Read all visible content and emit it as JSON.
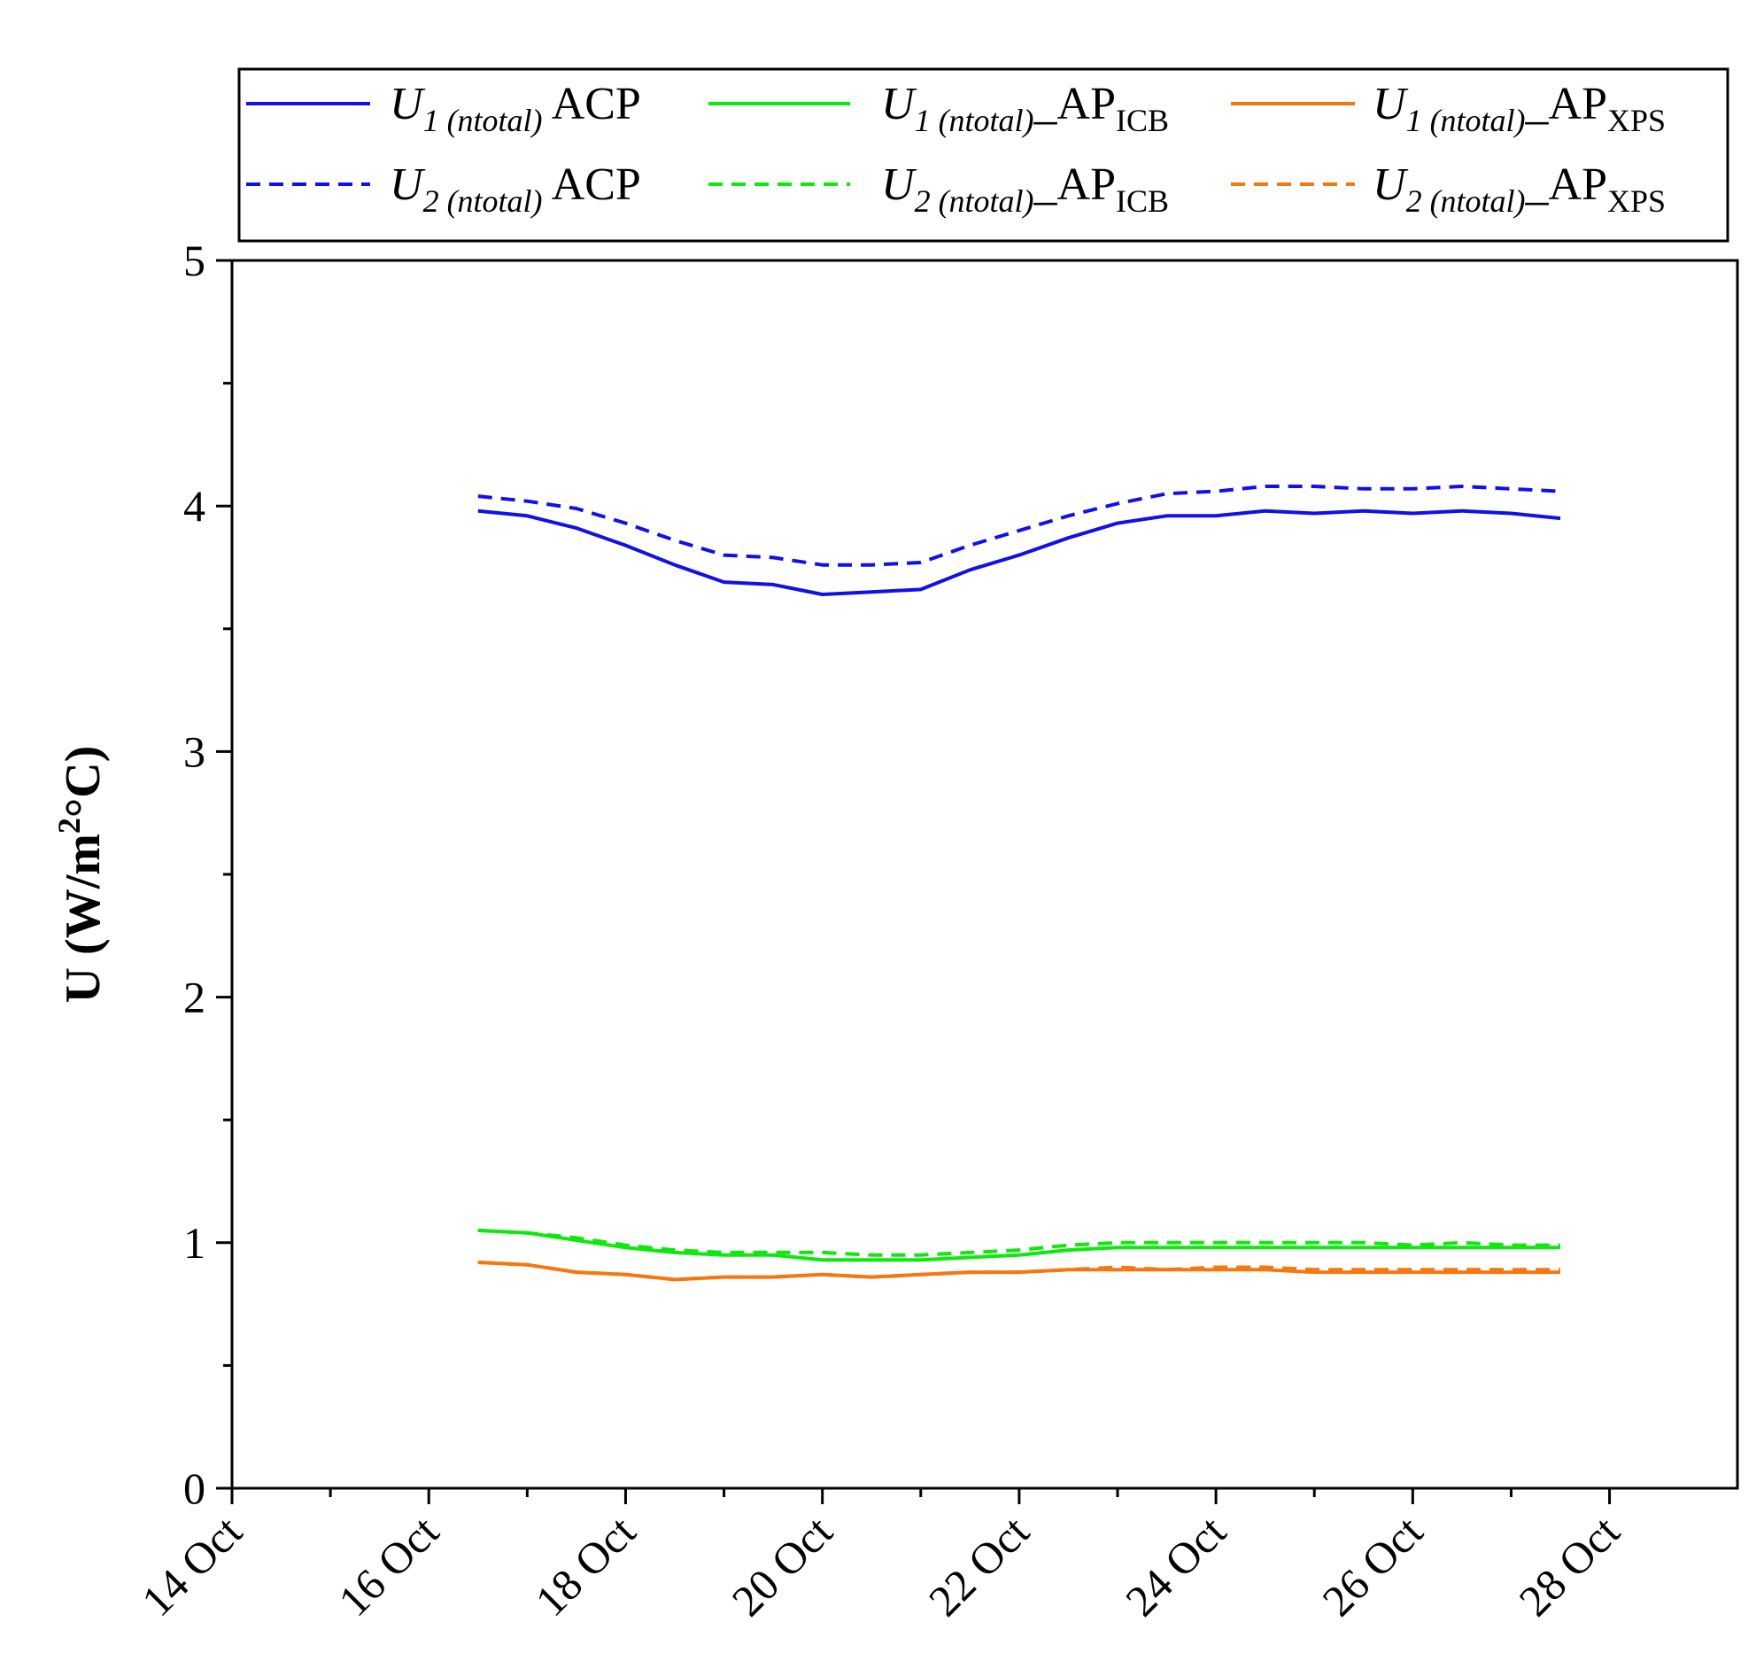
{
  "chart_data": {
    "type": "line",
    "title": "",
    "xlabel": "",
    "ylabel_main": "U (W/m",
    "ylabel_sup": "2",
    "ylabel_tail": "°C)",
    "ylim": [
      0,
      5
    ],
    "xlim": [
      14,
      29.3
    ],
    "y_ticks": [
      0,
      1,
      2,
      3,
      4,
      5
    ],
    "y_tick_labels": [
      "0",
      "1",
      "2",
      "3",
      "4",
      "5"
    ],
    "x_ticks": [
      14,
      16,
      18,
      20,
      22,
      24,
      26,
      28
    ],
    "x_tick_labels": [
      "14 Oct",
      "16 Oct",
      "18 Oct",
      "20 Oct",
      "22 Oct",
      "24 Oct",
      "26 Oct",
      "28 Oct"
    ],
    "legend_position": "top",
    "x": [
      16.5,
      17.0,
      17.5,
      18.0,
      18.5,
      19.0,
      19.5,
      20.0,
      20.5,
      21.0,
      21.5,
      22.0,
      22.5,
      23.0,
      23.5,
      24.0,
      24.5,
      25.0,
      25.5,
      26.0,
      26.5,
      27.0,
      27.5
    ],
    "series": [
      {
        "key": "u1_acp",
        "color": "#1010e8",
        "dash": "solid",
        "sym": "U",
        "sub1": "1",
        "sub2": "(ntotal)",
        "sep": " ",
        "suffix": "ACP",
        "suffix_sub": "",
        "values": [
          3.98,
          3.96,
          3.91,
          3.84,
          3.76,
          3.69,
          3.68,
          3.64,
          3.65,
          3.66,
          3.74,
          3.8,
          3.87,
          3.93,
          3.96,
          3.96,
          3.98,
          3.97,
          3.98,
          3.97,
          3.98,
          3.97,
          3.95
        ]
      },
      {
        "key": "u1_icb",
        "color": "#0ee80e",
        "dash": "solid",
        "sym": "U",
        "sub1": "1",
        "sub2": "(ntotal)",
        "sep": "_",
        "suffix": "AP",
        "suffix_sub": "ICB",
        "values": [
          1.05,
          1.04,
          1.01,
          0.98,
          0.96,
          0.95,
          0.95,
          0.93,
          0.93,
          0.93,
          0.94,
          0.95,
          0.97,
          0.98,
          0.98,
          0.98,
          0.98,
          0.98,
          0.98,
          0.98,
          0.98,
          0.98,
          0.98
        ]
      },
      {
        "key": "u1_xps",
        "color": "#f7770f",
        "dash": "solid",
        "sym": "U",
        "sub1": "1",
        "sub2": "(ntotal)",
        "sep": "_",
        "suffix": "AP",
        "suffix_sub": "XPS",
        "values": [
          0.92,
          0.91,
          0.88,
          0.87,
          0.85,
          0.86,
          0.86,
          0.87,
          0.86,
          0.87,
          0.88,
          0.88,
          0.89,
          0.89,
          0.89,
          0.89,
          0.89,
          0.88,
          0.88,
          0.88,
          0.88,
          0.88,
          0.88
        ]
      },
      {
        "key": "u2_acp",
        "color": "#1010e8",
        "dash": "dashed",
        "sym": "U",
        "sub1": "2",
        "sub2": "(ntotal)",
        "sep": " ",
        "suffix": "ACP",
        "suffix_sub": "",
        "values": [
          4.04,
          4.02,
          3.99,
          3.93,
          3.86,
          3.8,
          3.79,
          3.76,
          3.76,
          3.77,
          3.84,
          3.9,
          3.96,
          4.01,
          4.05,
          4.06,
          4.08,
          4.08,
          4.07,
          4.07,
          4.08,
          4.07,
          4.06
        ]
      },
      {
        "key": "u2_icb",
        "color": "#0ee80e",
        "dash": "dashed",
        "sym": "U",
        "sub1": "2",
        "sub2": "(ntotal)",
        "sep": "_",
        "suffix": "AP",
        "suffix_sub": "ICB",
        "values": [
          1.05,
          1.04,
          1.02,
          0.99,
          0.97,
          0.96,
          0.96,
          0.96,
          0.95,
          0.95,
          0.96,
          0.97,
          0.99,
          1.0,
          1.0,
          1.0,
          1.0,
          1.0,
          1.0,
          0.99,
          1.0,
          0.99,
          0.99
        ]
      },
      {
        "key": "u2_xps",
        "color": "#f7770f",
        "dash": "dashed",
        "sym": "U",
        "sub1": "2",
        "sub2": "(ntotal)",
        "sep": "_",
        "suffix": "AP",
        "suffix_sub": "XPS",
        "values": [
          0.92,
          0.91,
          0.88,
          0.87,
          0.85,
          0.86,
          0.86,
          0.87,
          0.86,
          0.87,
          0.88,
          0.88,
          0.89,
          0.9,
          0.89,
          0.9,
          0.9,
          0.89,
          0.89,
          0.89,
          0.89,
          0.89,
          0.89
        ]
      }
    ]
  }
}
